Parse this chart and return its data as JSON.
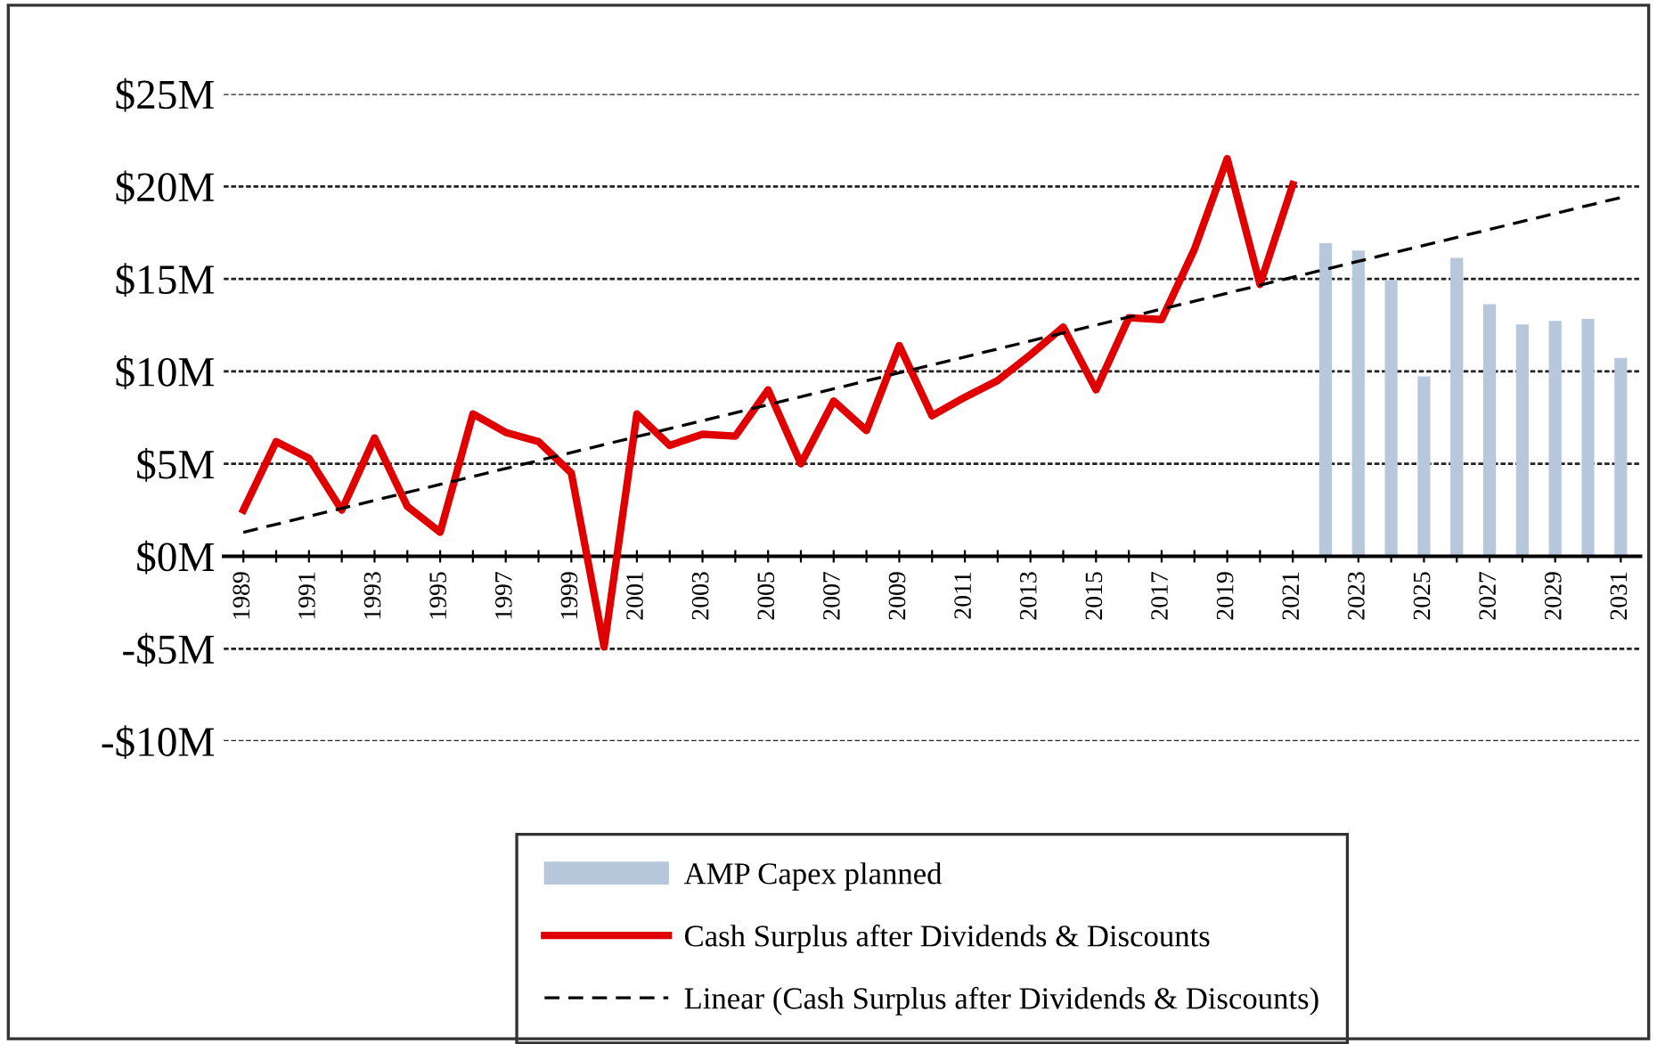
{
  "chart_data": {
    "type": "line",
    "categories": [
      "1989",
      null,
      "1991",
      null,
      "1993",
      null,
      "1995",
      null,
      "1997",
      null,
      "1999",
      null,
      "2001",
      null,
      "2003",
      null,
      "2005",
      null,
      "2007",
      null,
      "2009",
      null,
      "2011",
      null,
      "2013",
      null,
      "2015",
      null,
      "2017",
      null,
      "2019",
      null,
      "2021",
      null,
      "2023",
      null,
      "2025",
      null,
      "2027",
      null,
      "2029",
      null,
      "2031"
    ],
    "series": [
      {
        "name": "AMP Capex planned",
        "type": "bar",
        "color": "#b8c8dc",
        "values": [
          null,
          null,
          null,
          null,
          null,
          null,
          null,
          null,
          null,
          null,
          null,
          null,
          null,
          null,
          null,
          null,
          null,
          null,
          null,
          null,
          null,
          null,
          null,
          null,
          null,
          null,
          null,
          null,
          null,
          null,
          null,
          null,
          null,
          16.9,
          16.5,
          14.9,
          9.7,
          16.1,
          13.6,
          12.5,
          12.7,
          12.8,
          10.7
        ]
      },
      {
        "name": "Cash Surplus after Dividends & Discounts",
        "color": "#e00000",
        "line_style": "solid",
        "values": [
          2.5,
          6.2,
          5.3,
          2.5,
          6.4,
          2.7,
          1.3,
          7.7,
          6.7,
          6.2,
          4.5,
          -4.9,
          7.7,
          6.0,
          6.6,
          6.5,
          9.0,
          5.0,
          8.4,
          6.8,
          11.4,
          7.6,
          8.6,
          9.5,
          10.9,
          12.4,
          9.0,
          12.9,
          12.8,
          16.6,
          21.5,
          14.7,
          20.1,
          null,
          null,
          null,
          null,
          null,
          null,
          null,
          null,
          null,
          null
        ]
      },
      {
        "name": "Linear (Cash Surplus after Dividends & Discounts)",
        "color": "#000000",
        "line_style": "dashed",
        "values": [
          1.3,
          null,
          null,
          null,
          null,
          null,
          null,
          null,
          null,
          null,
          null,
          null,
          null,
          null,
          null,
          null,
          null,
          null,
          null,
          null,
          null,
          null,
          null,
          null,
          null,
          null,
          null,
          null,
          null,
          null,
          null,
          null,
          null,
          null,
          null,
          null,
          null,
          null,
          null,
          null,
          null,
          null,
          19.4
        ]
      }
    ],
    "ylim": [
      -10,
      25
    ],
    "yticks": [
      {
        "value": -10,
        "label": "-$10M"
      },
      {
        "value": -5,
        "label": "-$5M"
      },
      {
        "value": 0,
        "label": "$0M"
      },
      {
        "value": 5,
        "label": "$5M"
      },
      {
        "value": 10,
        "label": "$10M"
      },
      {
        "value": 15,
        "label": "$15M"
      },
      {
        "value": 20,
        "label": "$20M"
      },
      {
        "value": 25,
        "label": "$25M"
      }
    ],
    "grid": "y",
    "legend": "bottom",
    "marker": "none"
  }
}
